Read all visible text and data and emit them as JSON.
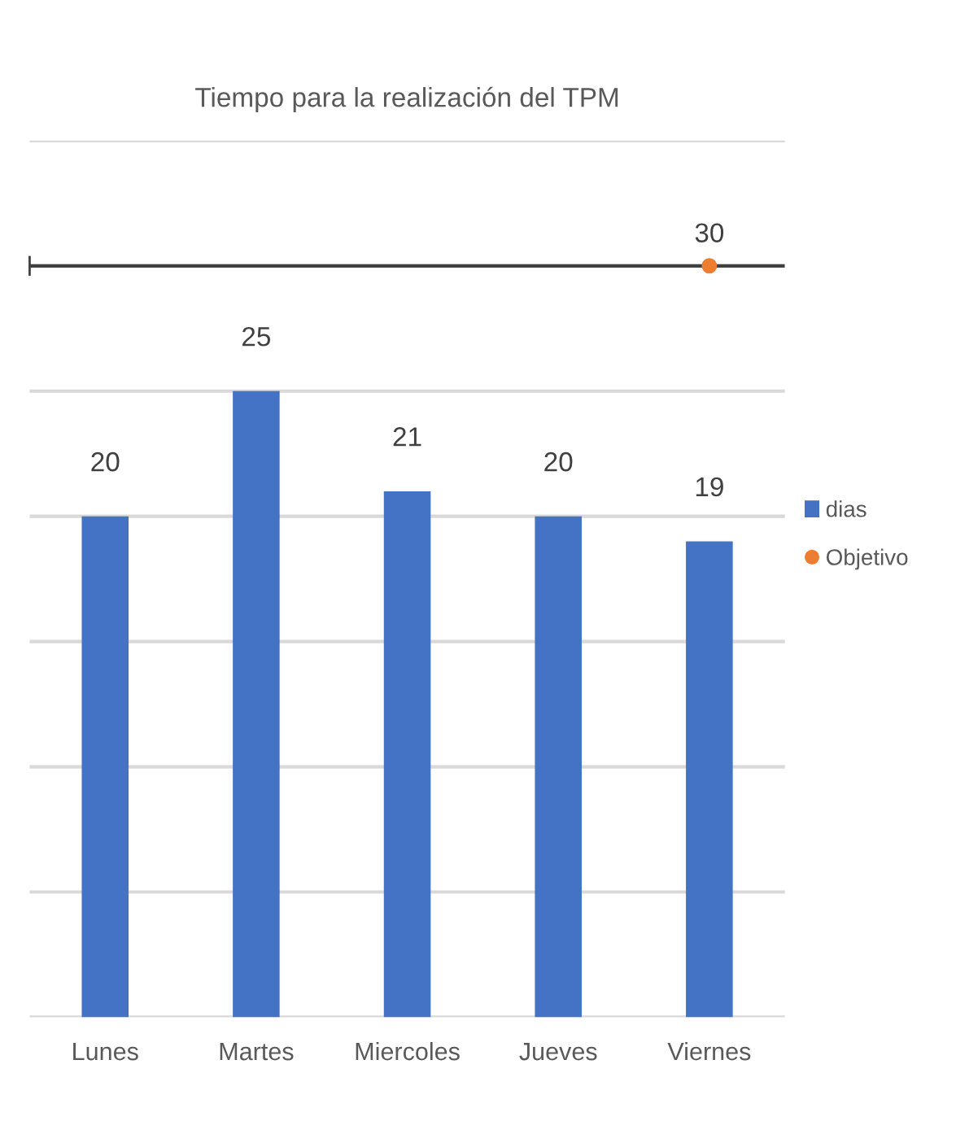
{
  "chart_data": {
    "type": "bar",
    "title": "Tiempo para la realización del TPM",
    "categories": [
      "Lunes",
      "Martes",
      "Miercoles",
      "Jueves",
      "Viernes"
    ],
    "series": [
      {
        "name": "dias",
        "color": "#4472c4",
        "values": [
          20,
          25,
          21,
          20,
          19
        ]
      },
      {
        "name": "Objetivo",
        "type": "scatter",
        "color": "#ed7d31",
        "values": [
          null,
          null,
          null,
          null,
          30
        ]
      }
    ],
    "ref_lines": [
      {
        "axis": "y",
        "value": 30,
        "color": "#404040"
      }
    ],
    "ylim": [
      0,
      35
    ],
    "yticks": [
      {
        "value": 0,
        "label": null
      },
      {
        "value": 5,
        "label": null
      },
      {
        "value": 10,
        "label": null
      },
      {
        "value": 15,
        "label": null
      },
      {
        "value": 20,
        "label": null
      },
      {
        "value": 25,
        "label": null
      },
      {
        "value": 30,
        "label": null
      },
      {
        "value": 35,
        "label": null
      }
    ],
    "tick_labels": "x",
    "grid": "y",
    "data_labels": true,
    "legend": "right",
    "marker": "circle"
  }
}
